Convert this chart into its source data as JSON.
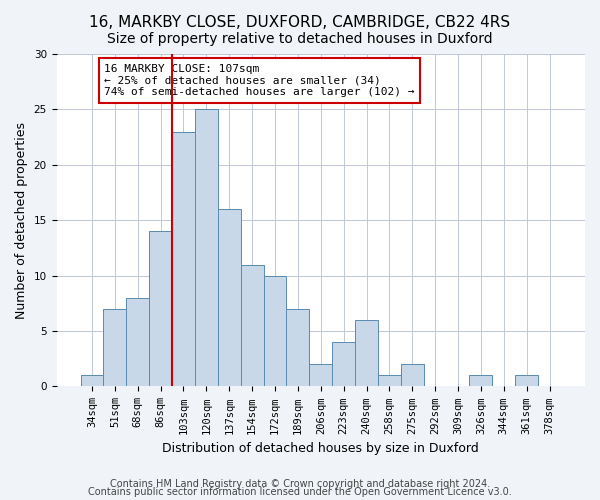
{
  "title1": "16, MARKBY CLOSE, DUXFORD, CAMBRIDGE, CB22 4RS",
  "title2": "Size of property relative to detached houses in Duxford",
  "xlabel": "Distribution of detached houses by size in Duxford",
  "ylabel": "Number of detached properties",
  "bar_color": "#c8d8e8",
  "bar_edge_color": "#5a8ab0",
  "bins": [
    "34sqm",
    "51sqm",
    "68sqm",
    "86sqm",
    "103sqm",
    "120sqm",
    "137sqm",
    "154sqm",
    "172sqm",
    "189sqm",
    "206sqm",
    "223sqm",
    "240sqm",
    "258sqm",
    "275sqm",
    "292sqm",
    "309sqm",
    "326sqm",
    "344sqm",
    "361sqm",
    "378sqm"
  ],
  "values": [
    1,
    7,
    8,
    14,
    23,
    25,
    16,
    11,
    10,
    7,
    2,
    4,
    6,
    1,
    2,
    0,
    0,
    1,
    0,
    1,
    0
  ],
  "ylim": [
    0,
    30
  ],
  "yticks": [
    0,
    5,
    10,
    15,
    20,
    25,
    30
  ],
  "annotation_text": "16 MARKBY CLOSE: 107sqm\n← 25% of detached houses are smaller (34)\n74% of semi-detached houses are larger (102) →",
  "footer1": "Contains HM Land Registry data © Crown copyright and database right 2024.",
  "footer2": "Contains public sector information licensed under the Open Government Licence v3.0.",
  "background_color": "#f0f4f8",
  "plot_bg_color": "#ffffff",
  "grid_color": "#c0c8d8",
  "vline_color": "#cc0000",
  "annotation_border_color": "#cc0000",
  "title_fontsize": 11,
  "subtitle_fontsize": 10,
  "label_fontsize": 9,
  "tick_fontsize": 7.5,
  "footer_fontsize": 7,
  "annotation_fontsize": 8
}
